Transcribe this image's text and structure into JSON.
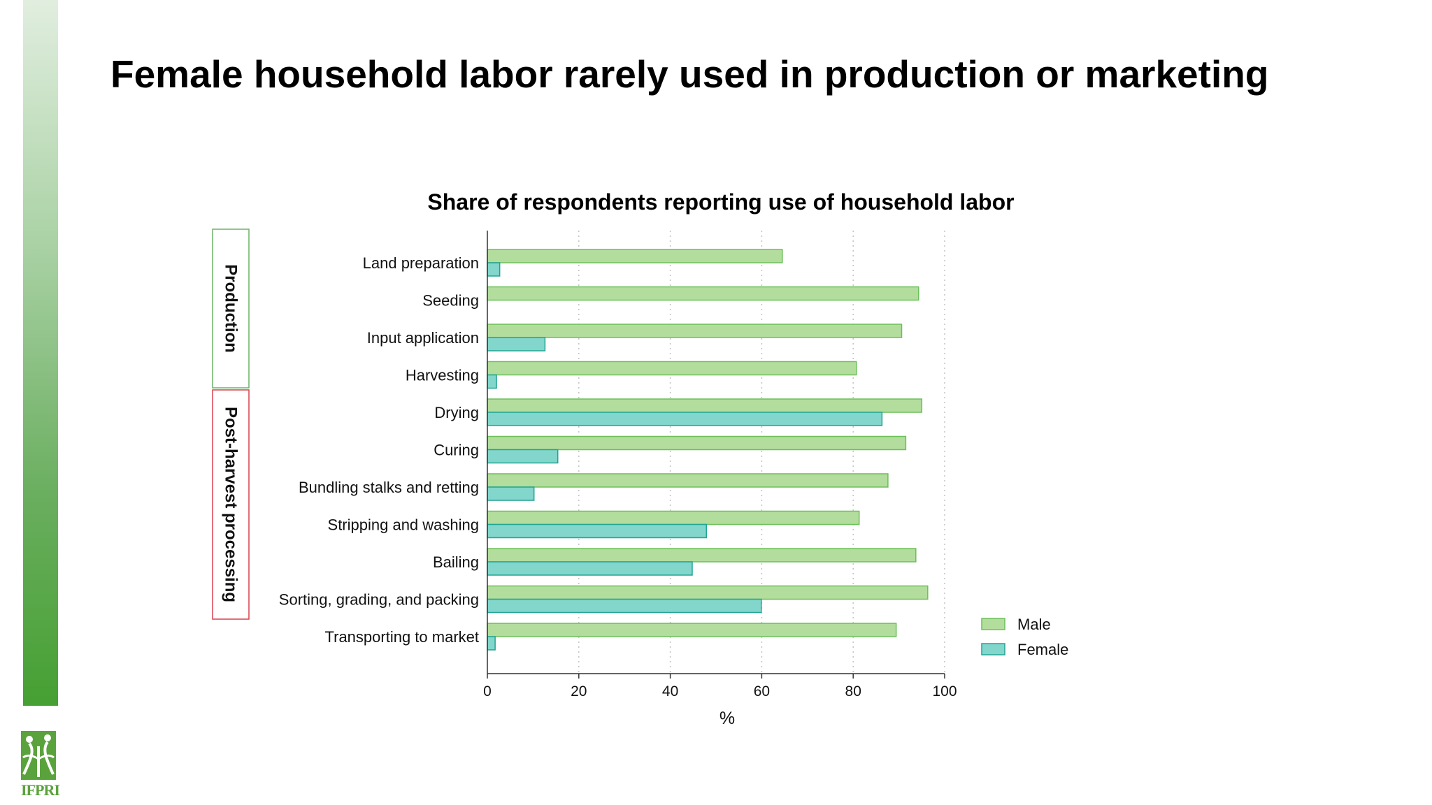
{
  "slide": {
    "title": "Female household labor rarely used in production or marketing"
  },
  "logo": {
    "text": "IFPRI"
  },
  "colors": {
    "male_fill": "#b3dd9d",
    "male_stroke": "#6cbf5a",
    "female_fill": "#82d6cc",
    "female_stroke": "#23a493",
    "production_box": "#6ab363",
    "postharvest_box": "#d9404a",
    "sidebar_top": "#e1eedf",
    "sidebar_bottom": "#46a032"
  },
  "chart_data": {
    "type": "bar",
    "orientation": "horizontal",
    "title": "Share of respondents reporting use of household labor",
    "xlabel": "%",
    "ylabel": "",
    "xlim": [
      0,
      100
    ],
    "xticks": [
      0,
      20,
      40,
      60,
      80,
      100
    ],
    "grid": "vertical-dotted",
    "legend_position": "right-bottom",
    "categories": [
      "Land preparation",
      "Seeding",
      "Input application",
      "Harvesting",
      "Drying",
      "Curing",
      "Bundling stalks and retting",
      "Stripping and washing",
      "Bailing",
      "Sorting, grading, and packing",
      "Transporting to market"
    ],
    "series": [
      {
        "name": "Male",
        "values": [
          64.5,
          94.3,
          90.6,
          80.7,
          95.0,
          91.5,
          87.6,
          81.3,
          93.7,
          96.3,
          89.4
        ]
      },
      {
        "name": "Female",
        "values": [
          2.7,
          0.0,
          12.6,
          2.0,
          86.3,
          15.4,
          10.2,
          47.9,
          44.8,
          59.9,
          1.7
        ]
      }
    ],
    "groups": [
      {
        "label": "Production",
        "start": 0,
        "end": 3
      },
      {
        "label": "Post-harvest processing",
        "start": 4,
        "end": 10
      }
    ]
  }
}
